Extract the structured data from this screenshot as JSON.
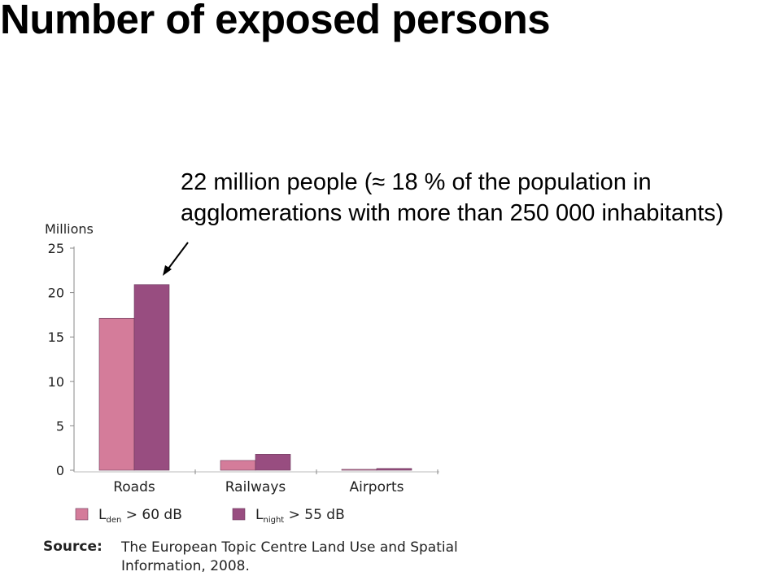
{
  "title": "Number of exposed persons",
  "annotation": {
    "line1": "22 million people (≈ 18 % of the population in",
    "line2": "agglomerations with more than 250 000 inhabitants)"
  },
  "chart_data": {
    "type": "bar",
    "ylabel": "Millions",
    "ylim": [
      0,
      25
    ],
    "yticks": [
      0,
      5,
      10,
      15,
      20,
      25
    ],
    "categories": [
      "Roads",
      "Railways",
      "Airports"
    ],
    "series": [
      {
        "name": "L_den > 60 dB",
        "legend_main": "L",
        "legend_sub": "den",
        "legend_rest": " > 60 dB",
        "color": "#d47c9a",
        "values": [
          17.1,
          1.1,
          0.1
        ]
      },
      {
        "name": "L_night > 55 dB",
        "legend_main": "L",
        "legend_sub": "night",
        "legend_rest": " > 55 dB",
        "color": "#984d80",
        "values": [
          20.9,
          1.8,
          0.2
        ]
      }
    ],
    "grid": false,
    "legend_position": "bottom-left"
  },
  "source": {
    "label": "Source:",
    "line1": "The European Topic Centre Land Use and Spatial",
    "line2": "Information, 2008."
  }
}
